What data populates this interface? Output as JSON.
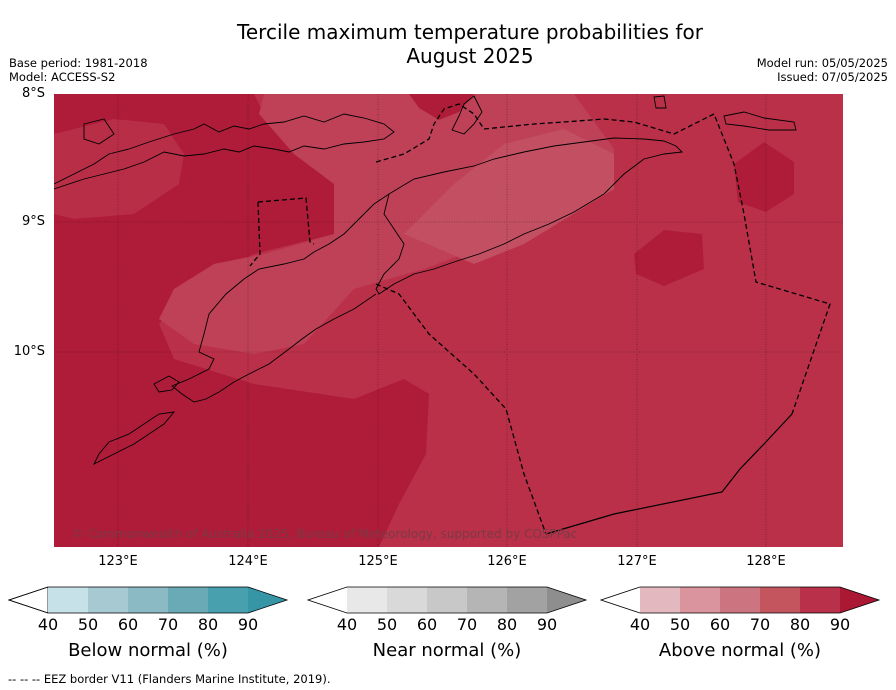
{
  "title_line1": "Tercile maximum temperature probabilities for",
  "title_line2": "August 2025",
  "meta_left": {
    "base_period": "Base period: 1981-2018",
    "model": "Model: ACCESS-S2"
  },
  "meta_right": {
    "model_run": "Model run: 05/05/2025",
    "issued": "Issued: 07/05/2025"
  },
  "map": {
    "lat_labels": [
      "8°S",
      "9°S",
      "10°S"
    ],
    "lon_labels": [
      "123°E",
      "124°E",
      "125°E",
      "126°E",
      "127°E",
      "128°E"
    ],
    "copyright": "© Commonwealth of Australia 2025, Bureau of Meteorology, supported by COSPPac",
    "colors": {
      "above_80": "#ba3049",
      "above_90": "#af1c39",
      "above_70_light": "#c14a5c",
      "above_70_lighter": "#c85a6b"
    }
  },
  "colorbars": [
    {
      "label": "Below normal (%)",
      "ticks": [
        "40",
        "50",
        "60",
        "70",
        "80",
        "90"
      ],
      "colors": [
        "#c7e1e8",
        "#a7c9d1",
        "#8bb9c4",
        "#6aaab7",
        "#489fae",
        "#3796a6"
      ]
    },
    {
      "label": "Near normal (%)",
      "ticks": [
        "40",
        "50",
        "60",
        "70",
        "80",
        "90"
      ],
      "colors": [
        "#e8e8e8",
        "#d9d9d9",
        "#c8c8c8",
        "#b5b5b5",
        "#a2a2a2",
        "#8e8e8e"
      ]
    },
    {
      "label": "Above normal (%)",
      "ticks": [
        "40",
        "50",
        "60",
        "70",
        "80",
        "90"
      ],
      "colors": [
        "#e3b8bf",
        "#d9949e",
        "#cc7480",
        "#c4555f",
        "#b8304a",
        "#ab1834"
      ]
    }
  ],
  "footer": "--  --  -- EEZ border V11 (Flanders Marine Institute, 2019)."
}
